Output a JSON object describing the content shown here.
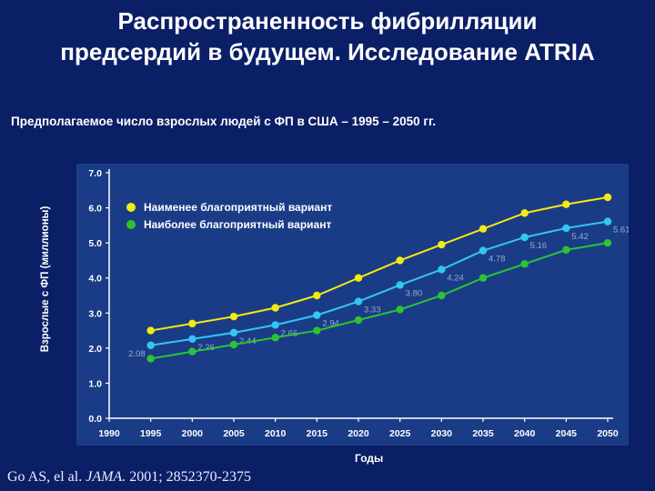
{
  "title_line1": "Распространенность фибрилляции",
  "title_line2": "предсердий в будущем. Исследование ATRIA",
  "citation": {
    "authors": "Go AS, el al.",
    "journal": "JAMA.",
    "rest": "2001; 2852370-2375"
  },
  "colors": {
    "background": "#0b1f66",
    "plot_background": "#1a3c86",
    "worst": "#f2ea12",
    "middle": "#33c6f2",
    "best": "#2ec235"
  },
  "chart_data": {
    "type": "line",
    "title": "Предполагаемое число взрослых людей с ФП в США – 1995 – 2050 гг.",
    "xlabel": "Годы",
    "ylabel": "Взрослые с ФП (миллионы)",
    "x": [
      1995,
      2000,
      2005,
      2010,
      2015,
      2020,
      2025,
      2030,
      2035,
      2040,
      2045,
      2050
    ],
    "xticks": [
      "1990",
      "1995",
      "2000",
      "2005",
      "2010",
      "2015",
      "2020",
      "2025",
      "2030",
      "2035",
      "2040",
      "2045",
      "2050"
    ],
    "yticks": [
      "0.0",
      "1.0",
      "2.0",
      "3.0",
      "4.0",
      "5.0",
      "6.0",
      "7.0"
    ],
    "xlim": [
      1990,
      2050
    ],
    "ylim": [
      0,
      7
    ],
    "grid": false,
    "legend_position": "top-left",
    "series": [
      {
        "name": "Наименее благоприятный вариант",
        "color": "#f2ea12",
        "values": [
          2.5,
          2.7,
          2.9,
          3.15,
          3.5,
          4.0,
          4.5,
          4.95,
          5.4,
          5.85,
          6.1,
          6.3
        ]
      },
      {
        "color": "#33c6f2",
        "values": [
          2.08,
          2.26,
          2.44,
          2.66,
          2.94,
          3.33,
          3.8,
          4.24,
          4.78,
          5.16,
          5.42,
          5.61
        ],
        "labels": [
          "2.08",
          "2.26",
          "2.44",
          "2.66",
          "2.94",
          "3.33",
          "3.80",
          "4.24",
          "4.78",
          "5.16",
          "5.42",
          "5.61"
        ]
      },
      {
        "name": "Наиболее благоприятный вариант",
        "color": "#2ec235",
        "values": [
          1.7,
          1.9,
          2.1,
          2.3,
          2.5,
          2.8,
          3.1,
          3.5,
          4.0,
          4.4,
          4.8,
          5.0
        ]
      }
    ]
  }
}
